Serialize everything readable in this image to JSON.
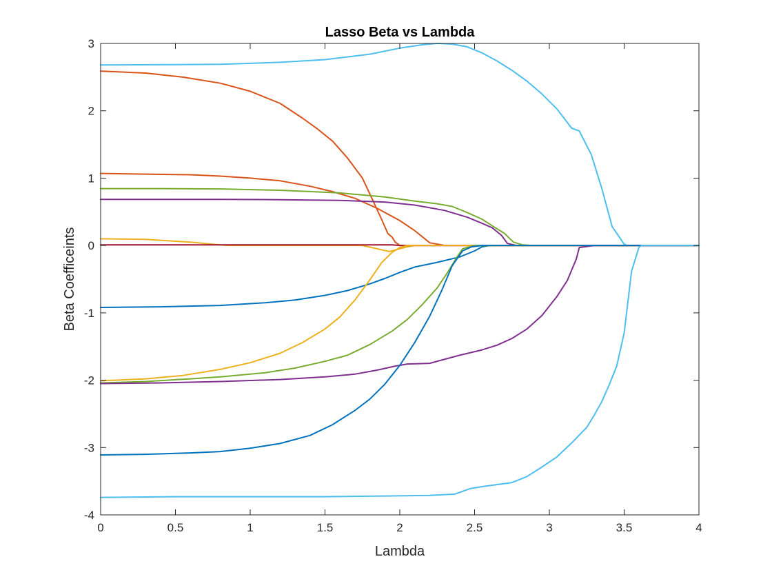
{
  "chart_data": {
    "type": "line",
    "title": "Lasso Beta vs Lambda",
    "xlabel": "Lambda",
    "ylabel": "Beta Coefficeints",
    "xlim": [
      0,
      4
    ],
    "ylim": [
      -4,
      3
    ],
    "xticks": [
      0,
      0.5,
      1,
      1.5,
      2,
      2.5,
      3,
      3.5,
      4
    ],
    "xtick_labels": [
      "0",
      "0.5",
      "1",
      "1.5",
      "2",
      "2.5",
      "3",
      "3.5",
      "4"
    ],
    "yticks": [
      -4,
      -3,
      -2,
      -1,
      0,
      1,
      2,
      3
    ],
    "ytick_labels": [
      "-4",
      "-3",
      "-2",
      "-1",
      "0",
      "1",
      "2",
      "3"
    ],
    "grid": false,
    "legend": "none",
    "series": [
      {
        "color": "#4DBEEE",
        "points": [
          [
            0,
            2.68
          ],
          [
            0.5,
            2.685
          ],
          [
            0.8,
            2.69
          ],
          [
            1.2,
            2.72
          ],
          [
            1.5,
            2.76
          ],
          [
            1.8,
            2.84
          ],
          [
            2.0,
            2.93
          ],
          [
            2.15,
            2.98
          ],
          [
            2.25,
            3.0
          ],
          [
            2.35,
            2.99
          ],
          [
            2.45,
            2.95
          ],
          [
            2.55,
            2.86
          ],
          [
            2.65,
            2.74
          ],
          [
            2.75,
            2.6
          ],
          [
            2.85,
            2.44
          ],
          [
            2.95,
            2.25
          ],
          [
            3.05,
            2.03
          ],
          [
            3.15,
            1.74
          ],
          [
            3.2,
            1.7
          ],
          [
            3.28,
            1.35
          ],
          [
            3.35,
            0.85
          ],
          [
            3.42,
            0.28
          ],
          [
            3.5,
            0.02
          ],
          [
            3.52,
            0.0
          ],
          [
            4.0,
            0.0
          ]
        ]
      },
      {
        "color": "#D95319",
        "points": [
          [
            0,
            2.59
          ],
          [
            0.3,
            2.56
          ],
          [
            0.55,
            2.5
          ],
          [
            0.8,
            2.41
          ],
          [
            1.0,
            2.29
          ],
          [
            1.2,
            2.11
          ],
          [
            1.35,
            1.89
          ],
          [
            1.45,
            1.73
          ],
          [
            1.55,
            1.55
          ],
          [
            1.65,
            1.3
          ],
          [
            1.75,
            1.0
          ],
          [
            1.82,
            0.67
          ],
          [
            1.88,
            0.38
          ],
          [
            1.92,
            0.18
          ],
          [
            1.95,
            0.12
          ],
          [
            1.97,
            0.05
          ],
          [
            2.0,
            0.0
          ],
          [
            4.0,
            0.0
          ]
        ]
      },
      {
        "color": "#D95319",
        "points": [
          [
            0,
            1.07
          ],
          [
            0.3,
            1.06
          ],
          [
            0.6,
            1.05
          ],
          [
            0.8,
            1.03
          ],
          [
            1.0,
            1.0
          ],
          [
            1.2,
            0.96
          ],
          [
            1.4,
            0.88
          ],
          [
            1.55,
            0.8
          ],
          [
            1.7,
            0.7
          ],
          [
            1.85,
            0.55
          ],
          [
            2.0,
            0.37
          ],
          [
            2.1,
            0.22
          ],
          [
            2.2,
            0.04
          ],
          [
            2.25,
            0.02
          ],
          [
            2.3,
            0.0
          ],
          [
            4.0,
            0.0
          ]
        ]
      },
      {
        "color": "#77AC30",
        "points": [
          [
            0,
            0.845
          ],
          [
            0.4,
            0.845
          ],
          [
            0.8,
            0.84
          ],
          [
            1.2,
            0.82
          ],
          [
            1.6,
            0.78
          ],
          [
            1.9,
            0.72
          ],
          [
            2.1,
            0.66
          ],
          [
            2.25,
            0.62
          ],
          [
            2.35,
            0.58
          ],
          [
            2.45,
            0.49
          ],
          [
            2.55,
            0.39
          ],
          [
            2.62,
            0.29
          ],
          [
            2.7,
            0.18
          ],
          [
            2.76,
            0.05
          ],
          [
            2.82,
            0.01
          ],
          [
            2.88,
            0.0
          ],
          [
            4.0,
            0.0
          ]
        ]
      },
      {
        "color": "#7E2F8E",
        "points": [
          [
            0,
            0.685
          ],
          [
            0.4,
            0.685
          ],
          [
            0.8,
            0.685
          ],
          [
            1.2,
            0.68
          ],
          [
            1.6,
            0.67
          ],
          [
            1.9,
            0.645
          ],
          [
            2.1,
            0.6
          ],
          [
            2.3,
            0.52
          ],
          [
            2.45,
            0.42
          ],
          [
            2.55,
            0.33
          ],
          [
            2.62,
            0.26
          ],
          [
            2.68,
            0.15
          ],
          [
            2.72,
            0.03
          ],
          [
            2.78,
            0.0
          ],
          [
            4.0,
            0.0
          ]
        ]
      },
      {
        "color": "#EDB120",
        "points": [
          [
            0,
            0.1
          ],
          [
            0.3,
            0.09
          ],
          [
            0.6,
            0.05
          ],
          [
            0.8,
            0.01
          ],
          [
            0.85,
            0.0
          ],
          [
            1.75,
            0.0
          ],
          [
            1.85,
            -0.05
          ],
          [
            1.93,
            -0.09
          ],
          [
            1.98,
            -0.06
          ],
          [
            2.05,
            -0.02
          ],
          [
            2.1,
            0.0
          ],
          [
            4.0,
            0.0
          ]
        ]
      },
      {
        "color": "#A2142F",
        "points": [
          [
            0,
            0.01
          ],
          [
            1.95,
            0.01
          ],
          [
            2.0,
            0.0
          ],
          [
            4.0,
            0.0
          ]
        ]
      },
      {
        "color": "#0072BD",
        "points": [
          [
            0,
            -0.92
          ],
          [
            0.4,
            -0.91
          ],
          [
            0.8,
            -0.89
          ],
          [
            1.1,
            -0.85
          ],
          [
            1.3,
            -0.81
          ],
          [
            1.5,
            -0.74
          ],
          [
            1.65,
            -0.67
          ],
          [
            1.8,
            -0.57
          ],
          [
            1.9,
            -0.49
          ],
          [
            2.0,
            -0.4
          ],
          [
            2.1,
            -0.32
          ],
          [
            2.25,
            -0.25
          ],
          [
            2.4,
            -0.17
          ],
          [
            2.5,
            -0.08
          ],
          [
            2.55,
            -0.02
          ],
          [
            2.6,
            0.0
          ],
          [
            4.0,
            0.0
          ]
        ]
      },
      {
        "color": "#EDB120",
        "points": [
          [
            0,
            -2.01
          ],
          [
            0.3,
            -1.98
          ],
          [
            0.55,
            -1.93
          ],
          [
            0.8,
            -1.84
          ],
          [
            1.0,
            -1.74
          ],
          [
            1.2,
            -1.6
          ],
          [
            1.35,
            -1.44
          ],
          [
            1.5,
            -1.24
          ],
          [
            1.6,
            -1.06
          ],
          [
            1.7,
            -0.81
          ],
          [
            1.8,
            -0.51
          ],
          [
            1.88,
            -0.25
          ],
          [
            1.95,
            -0.1
          ],
          [
            2.0,
            -0.03
          ],
          [
            2.05,
            0.0
          ],
          [
            4.0,
            0.0
          ]
        ]
      },
      {
        "color": "#77AC30",
        "points": [
          [
            0,
            -2.04
          ],
          [
            0.3,
            -2.02
          ],
          [
            0.6,
            -1.98
          ],
          [
            0.8,
            -1.95
          ],
          [
            1.1,
            -1.89
          ],
          [
            1.3,
            -1.82
          ],
          [
            1.5,
            -1.72
          ],
          [
            1.65,
            -1.63
          ],
          [
            1.8,
            -1.47
          ],
          [
            1.95,
            -1.27
          ],
          [
            2.05,
            -1.1
          ],
          [
            2.15,
            -0.88
          ],
          [
            2.25,
            -0.63
          ],
          [
            2.32,
            -0.4
          ],
          [
            2.38,
            -0.18
          ],
          [
            2.42,
            -0.05
          ],
          [
            2.5,
            0.0
          ],
          [
            4.0,
            0.0
          ]
        ]
      },
      {
        "color": "#7E2F8E",
        "points": [
          [
            0,
            -2.05
          ],
          [
            0.4,
            -2.04
          ],
          [
            0.8,
            -2.02
          ],
          [
            1.2,
            -1.99
          ],
          [
            1.5,
            -1.95
          ],
          [
            1.7,
            -1.91
          ],
          [
            1.85,
            -1.85
          ],
          [
            1.97,
            -1.79
          ],
          [
            2.05,
            -1.76
          ],
          [
            2.2,
            -1.75
          ],
          [
            2.4,
            -1.63
          ],
          [
            2.55,
            -1.55
          ],
          [
            2.65,
            -1.48
          ],
          [
            2.75,
            -1.38
          ],
          [
            2.85,
            -1.24
          ],
          [
            2.95,
            -1.04
          ],
          [
            3.05,
            -0.76
          ],
          [
            3.12,
            -0.52
          ],
          [
            3.18,
            -0.2
          ],
          [
            3.2,
            -0.03
          ],
          [
            3.3,
            0.0
          ],
          [
            4.0,
            0.0
          ]
        ]
      },
      {
        "color": "#0072BD",
        "points": [
          [
            0,
            -3.11
          ],
          [
            0.3,
            -3.1
          ],
          [
            0.6,
            -3.08
          ],
          [
            0.8,
            -3.06
          ],
          [
            1.0,
            -3.01
          ],
          [
            1.2,
            -2.94
          ],
          [
            1.4,
            -2.82
          ],
          [
            1.55,
            -2.66
          ],
          [
            1.7,
            -2.45
          ],
          [
            1.8,
            -2.28
          ],
          [
            1.9,
            -2.06
          ],
          [
            2.0,
            -1.78
          ],
          [
            2.1,
            -1.44
          ],
          [
            2.2,
            -1.05
          ],
          [
            2.28,
            -0.67
          ],
          [
            2.35,
            -0.3
          ],
          [
            2.42,
            -0.08
          ],
          [
            2.48,
            -0.02
          ],
          [
            2.55,
            0.0
          ],
          [
            4.0,
            0.0
          ]
        ]
      },
      {
        "color": "#4DBEEE",
        "points": [
          [
            0,
            -3.74
          ],
          [
            0.5,
            -3.73
          ],
          [
            1.0,
            -3.73
          ],
          [
            1.5,
            -3.73
          ],
          [
            1.9,
            -3.72
          ],
          [
            2.2,
            -3.71
          ],
          [
            2.37,
            -3.69
          ],
          [
            2.47,
            -3.61
          ],
          [
            2.55,
            -3.58
          ],
          [
            2.75,
            -3.52
          ],
          [
            2.85,
            -3.43
          ],
          [
            2.95,
            -3.29
          ],
          [
            3.05,
            -3.14
          ],
          [
            3.15,
            -2.93
          ],
          [
            3.25,
            -2.7
          ],
          [
            3.3,
            -2.52
          ],
          [
            3.35,
            -2.32
          ],
          [
            3.4,
            -2.07
          ],
          [
            3.45,
            -1.79
          ],
          [
            3.5,
            -1.3
          ],
          [
            3.55,
            -0.38
          ],
          [
            3.6,
            -0.02
          ],
          [
            3.62,
            0.0
          ],
          [
            4.0,
            0.0
          ]
        ]
      }
    ]
  }
}
